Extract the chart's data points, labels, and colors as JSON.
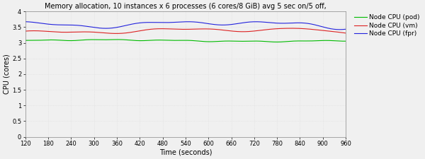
{
  "title": "Memory allocation, 10 instances x 6 processes (6 cores/8 GiB) avg 5 sec on/5 off,",
  "xlabel": "Time (seconds)",
  "ylabel": "CPU (cores)",
  "xlim": [
    120,
    960
  ],
  "ylim": [
    0,
    4
  ],
  "xticks": [
    120,
    180,
    240,
    300,
    360,
    420,
    480,
    540,
    600,
    660,
    720,
    780,
    840,
    900,
    960
  ],
  "yticks": [
    0,
    0.5,
    1,
    1.5,
    2,
    2.5,
    3,
    3.5,
    4
  ],
  "legend": [
    "Node CPU (pod)",
    "Node CPU (vm)",
    "Node CPU (fpr)"
  ],
  "colors": [
    "#00bb00",
    "#dd2222",
    "#2222dd"
  ],
  "background_color": "#f0f0f0",
  "plot_bg_color": "#f0f0f0",
  "grid_color": "#dddddd",
  "title_fontsize": 7.0,
  "axis_label_fontsize": 7.0,
  "tick_fontsize": 6.0,
  "legend_fontsize": 6.5,
  "pod_base": 3.07,
  "vm_base": 3.38,
  "fpr_base": 3.57
}
